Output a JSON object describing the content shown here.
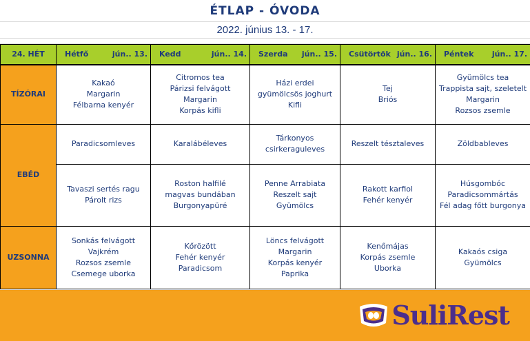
{
  "title": "ÉTLAP - ÓVODA",
  "subtitle": "2022. június 13. - 17.",
  "header": {
    "week": "24. HÉT",
    "days": [
      {
        "name": "Hétfő",
        "date": "jún.. 13."
      },
      {
        "name": "Kedd",
        "date": "jún.. 14."
      },
      {
        "name": "Szerda",
        "date": "jún.. 15."
      },
      {
        "name": "Csütörtök",
        "date": "jún.. 16."
      },
      {
        "name": "Péntek",
        "date": "jún.. 17."
      }
    ]
  },
  "meals": {
    "tizorai": {
      "label": "TÍZÓRAI",
      "days": [
        [
          "Kakaó",
          "Margarin",
          "Félbarna kenyér"
        ],
        [
          "Citromos tea",
          "Párizsi felvágott",
          "Margarin",
          "Korpás kifli"
        ],
        [
          "Házi erdei",
          "gyümölcsös joghurt",
          "Kifli"
        ],
        [
          "Tej",
          "Briós"
        ],
        [
          "Gyümölcs tea",
          "Trappista sajt, szeletelt",
          "Margarin",
          "Rozsos zsemle"
        ]
      ]
    },
    "ebed": {
      "label": "EBÉD",
      "soup": [
        [
          "Paradicsomleves"
        ],
        [
          "Karalábéleves"
        ],
        [
          "Tárkonyos",
          "csirkeraguleves"
        ],
        [
          "Reszelt tésztaleves"
        ],
        [
          "Zöldbableves"
        ]
      ],
      "main": [
        [
          "Tavaszi sertés ragu",
          "Párolt rizs"
        ],
        [
          "Roston halfilé",
          "magvas bundában",
          "Burgonyapüré"
        ],
        [
          "Penne Arrabiata",
          "Reszelt sajt",
          "Gyümölcs"
        ],
        [
          "Rakott karfiol",
          "Fehér kenyér"
        ],
        [
          "Húsgombóc",
          "Paradicsommártás",
          "Fél adag főtt burgonya"
        ]
      ]
    },
    "uzsonna": {
      "label": "UZSONNA",
      "days": [
        [
          "Sonkás felvágott",
          "Vajkrém",
          "Rozsos zsemle",
          "Csemege uborka"
        ],
        [
          "Kőrözött",
          "Fehér kenyér",
          "Paradicsom"
        ],
        [
          "Löncs felvágott",
          "Margarin",
          "Korpás kenyér",
          "Paprika"
        ],
        [
          "Kenőmájas",
          "Korpás zsemle",
          "Uborka"
        ],
        [
          "Kakaós csiga",
          "Gyümölcs"
        ]
      ]
    }
  },
  "footer": {
    "logo_text": "SuliRest",
    "logo_icon": "sulirest-logo-icon"
  },
  "colors": {
    "header_green": "#a8cf2b",
    "meal_orange": "#f5a11d",
    "text_blue": "#1f3b7a",
    "logo_purple": "#4b2e8c"
  }
}
